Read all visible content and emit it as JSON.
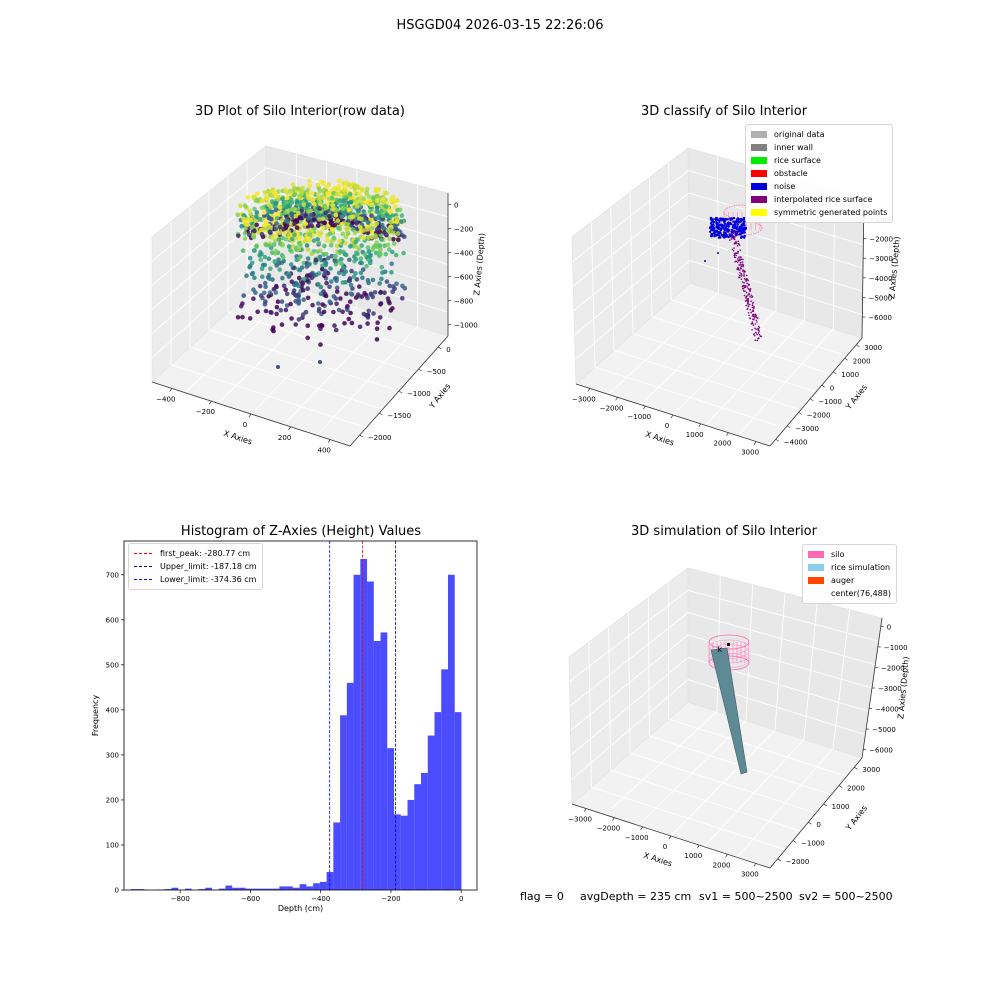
{
  "suptitle": "HSGGD04 2026-03-15 22:26:06",
  "chart_data": [
    {
      "type": "scatter",
      "title": "3D Plot of Silo Interior(row data)",
      "xlabel": "X Axies",
      "ylabel": "Y Axies",
      "zlabel": "Z Axies (Depth)",
      "x_ticks": [
        "−400",
        "−200",
        "0",
        "200",
        "400"
      ],
      "y_ticks": [
        "0",
        "−500",
        "−1000",
        "−1500",
        "−2000"
      ],
      "z_ticks": [
        "0",
        "−200",
        "−400",
        "−600",
        "−800",
        "−1000"
      ],
      "colormap": "viridis"
    },
    {
      "type": "scatter",
      "title": "3D classify of Silo Interior",
      "xlabel": "X Axies",
      "ylabel": "Y Axies",
      "zlabel": "Z Axies (Depth)",
      "x_ticks": [
        "−3000",
        "−2000",
        "−1000",
        "0",
        "1000",
        "2000",
        "3000"
      ],
      "y_ticks": [
        "3000",
        "2000",
        "1000",
        "0",
        "−1000",
        "−2000",
        "−3000",
        "−4000"
      ],
      "z_ticks": [
        "−1000",
        "−2000",
        "−3000",
        "−4000",
        "−5000",
        "−6000"
      ],
      "legend": [
        {
          "label": "original data",
          "color": "#b0b0b0"
        },
        {
          "label": "inner wall",
          "color": "#808080"
        },
        {
          "label": "rice surface",
          "color": "#00ee00"
        },
        {
          "label": "obstacle",
          "color": "#ff0000"
        },
        {
          "label": "noise",
          "color": "#0000dd"
        },
        {
          "label": "interpolated rice surface",
          "color": "#800080"
        },
        {
          "label": "symmetric generated points",
          "color": "#ffff00"
        }
      ]
    },
    {
      "type": "bar",
      "title": "Histogram of Z-Axies (Height) Values",
      "xlabel": "Depth (cm)",
      "ylabel": "Frequency",
      "xlim": [
        -960,
        45
      ],
      "ylim": [
        0,
        775
      ],
      "x_ticks": [
        -800,
        -600,
        -400,
        -200,
        0
      ],
      "x_tick_labels": [
        "−800",
        "−600",
        "−400",
        "−200",
        "0"
      ],
      "y_ticks": [
        0,
        100,
        200,
        300,
        400,
        500,
        600,
        700
      ],
      "bin_width": 19.2,
      "bins_left": [
        -940,
        -920.8,
        -901.6,
        -882.4,
        -863.2,
        -844,
        -824.8,
        -805.6,
        -786.4,
        -767.2,
        -748,
        -728.8,
        -709.6,
        -690.4,
        -671.2,
        -652,
        -632.8,
        -613.6,
        -594.4,
        -575.2,
        -556,
        -536.8,
        -517.6,
        -498.4,
        -479.2,
        -460,
        -440.8,
        -421.6,
        -402.4,
        -383.2,
        -364,
        -344.8,
        -325.6,
        -306.4,
        -287.2,
        -268,
        -248.8,
        -229.6,
        -210.4,
        -191.2,
        -172,
        -152.8,
        -133.6,
        -114.4,
        -95.2,
        -76,
        -56.8,
        -37.6,
        -18.4
      ],
      "counts": [
        2,
        2,
        0,
        0,
        1,
        2,
        5,
        0,
        3,
        0,
        2,
        5,
        0,
        3,
        10,
        5,
        5,
        3,
        3,
        3,
        3,
        3,
        8,
        8,
        5,
        13,
        8,
        15,
        18,
        40,
        150,
        388,
        460,
        700,
        735,
        685,
        553,
        572,
        315,
        168,
        165,
        200,
        235,
        260,
        343,
        395,
        490,
        700,
        395
      ],
      "color": "#0000ff",
      "vlines": [
        {
          "label": "first_peak: -280.77 cm",
          "x": -280.77,
          "color": "#ff0000"
        },
        {
          "label": "Upper_limit: -187.18 cm",
          "x": -187.18,
          "color": "#00008b"
        },
        {
          "label": "Lower_limit: -374.36 cm",
          "x": -374.36,
          "color": "#0000ff"
        }
      ]
    },
    {
      "type": "scatter",
      "title": "3D simulation of Silo Interior",
      "xlabel": "X Axies",
      "ylabel": "Y Axies",
      "zlabel": "Z Axies (Depth)",
      "x_ticks": [
        "−3000",
        "−2000",
        "−1000",
        "0",
        "1000",
        "2000",
        "3000"
      ],
      "y_ticks": [
        "3000",
        "2000",
        "1000",
        "0",
        "−1000",
        "−2000"
      ],
      "z_ticks": [
        "0",
        "−1000",
        "−2000",
        "−3000",
        "−4000",
        "−5000",
        "−6000"
      ],
      "legend": [
        {
          "label": "silo",
          "color": "#ff69b4"
        },
        {
          "label": "rice simulation",
          "color": "#87ceeb"
        },
        {
          "label": "auger",
          "color": "#ff4500"
        },
        {
          "label": "center(76,488)",
          "color": ""
        }
      ],
      "marker_label": "k"
    }
  ],
  "status": {
    "flag": "flag = 0",
    "avg_depth": "avgDepth = 235 cm",
    "sv1": "sv1 = 500~2500",
    "sv2": "sv2 = 500~2500"
  }
}
